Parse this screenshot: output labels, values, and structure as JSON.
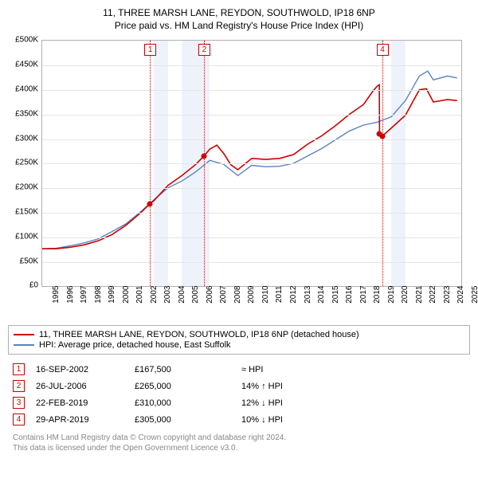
{
  "title": {
    "line1": "11, THREE MARSH LANE, REYDON, SOUTHWOLD, IP18 6NP",
    "line2": "Price paid vs. HM Land Registry's House Price Index (HPI)",
    "fontsize": 12,
    "color": "#000000"
  },
  "chart": {
    "type": "line",
    "background_color": "#ffffff",
    "border_color": "#b0b0b0",
    "grid_color": "#e5e5e5",
    "y_axis": {
      "min": 0,
      "max": 500000,
      "tick_step": 50000,
      "ticks": [
        "£0",
        "£50K",
        "£100K",
        "£150K",
        "£200K",
        "£250K",
        "£300K",
        "£350K",
        "£400K",
        "£450K",
        "£500K"
      ],
      "fontsize": 10
    },
    "x_axis": {
      "min": 1995,
      "max": 2025,
      "ticks": [
        "1995",
        "1996",
        "1997",
        "1998",
        "1999",
        "2000",
        "2001",
        "2002",
        "2003",
        "2004",
        "2005",
        "2006",
        "2007",
        "2008",
        "2009",
        "2010",
        "2011",
        "2012",
        "2013",
        "2014",
        "2015",
        "2016",
        "2017",
        "2018",
        "2019",
        "2020",
        "2021",
        "2022",
        "2023",
        "2024",
        "2025"
      ],
      "fontsize": 10
    },
    "shaded_bands": [
      {
        "year_start": 2003,
        "year_end": 2004,
        "color": "#eef3fb"
      },
      {
        "year_start": 2005,
        "year_end": 2007,
        "color": "#eef3fb"
      },
      {
        "year_start": 2020,
        "year_end": 2021,
        "color": "#eef3fb"
      }
    ],
    "marker_lines": [
      {
        "id": "1",
        "year": 2002.71,
        "label_top": -16,
        "color": "#cc0000"
      },
      {
        "id": "2",
        "year": 2006.57,
        "label_top": -16,
        "color": "#cc0000"
      },
      {
        "id": "4",
        "year": 2019.33,
        "label_top": -16,
        "color": "#cc0000"
      }
    ],
    "series": [
      {
        "name": "property",
        "label": "11, THREE MARSH LANE, REYDON, SOUTHWOLD, IP18 6NP (detached house)",
        "color": "#cc0000",
        "line_width": 1.6,
        "points": [
          [
            1995.0,
            76000
          ],
          [
            1996.0,
            76000
          ],
          [
            1997.0,
            79000
          ],
          [
            1998.0,
            84000
          ],
          [
            1999.0,
            92000
          ],
          [
            2000.0,
            105000
          ],
          [
            2001.0,
            124000
          ],
          [
            2002.0,
            148000
          ],
          [
            2002.71,
            167500
          ],
          [
            2003.0,
            174000
          ],
          [
            2004.0,
            205000
          ],
          [
            2005.0,
            225000
          ],
          [
            2006.0,
            248000
          ],
          [
            2006.57,
            265000
          ],
          [
            2007.0,
            279000
          ],
          [
            2007.5,
            287000
          ],
          [
            2008.0,
            270000
          ],
          [
            2008.5,
            247000
          ],
          [
            2009.0,
            237000
          ],
          [
            2010.0,
            260000
          ],
          [
            2011.0,
            258000
          ],
          [
            2012.0,
            260000
          ],
          [
            2013.0,
            268000
          ],
          [
            2014.0,
            289000
          ],
          [
            2015.0,
            306000
          ],
          [
            2016.0,
            327000
          ],
          [
            2017.0,
            350000
          ],
          [
            2018.0,
            370000
          ],
          [
            2018.7,
            398000
          ],
          [
            2019.0,
            408000
          ],
          [
            2019.13,
            410000
          ],
          [
            2019.15,
            310000
          ],
          [
            2019.33,
            305000
          ],
          [
            2020.0,
            322000
          ],
          [
            2021.0,
            348000
          ],
          [
            2022.0,
            400000
          ],
          [
            2022.5,
            402000
          ],
          [
            2023.0,
            375000
          ],
          [
            2024.0,
            380000
          ],
          [
            2024.7,
            378000
          ]
        ]
      },
      {
        "name": "hpi",
        "label": "HPI: Average price, detached house, East Suffolk",
        "color": "#5b84c4",
        "line_width": 1.4,
        "points": [
          [
            1995.0,
            76000
          ],
          [
            1996.0,
            77000
          ],
          [
            1997.0,
            82000
          ],
          [
            1998.0,
            88000
          ],
          [
            1999.0,
            96000
          ],
          [
            2000.0,
            111000
          ],
          [
            2001.0,
            127000
          ],
          [
            2002.0,
            150000
          ],
          [
            2003.0,
            176000
          ],
          [
            2004.0,
            200000
          ],
          [
            2005.0,
            214000
          ],
          [
            2006.0,
            233000
          ],
          [
            2007.0,
            256000
          ],
          [
            2008.0,
            248000
          ],
          [
            2009.0,
            225000
          ],
          [
            2010.0,
            246000
          ],
          [
            2011.0,
            243000
          ],
          [
            2012.0,
            244000
          ],
          [
            2013.0,
            250000
          ],
          [
            2014.0,
            265000
          ],
          [
            2015.0,
            280000
          ],
          [
            2016.0,
            298000
          ],
          [
            2017.0,
            316000
          ],
          [
            2018.0,
            328000
          ],
          [
            2019.0,
            334000
          ],
          [
            2020.0,
            345000
          ],
          [
            2021.0,
            378000
          ],
          [
            2022.0,
            428000
          ],
          [
            2022.6,
            438000
          ],
          [
            2023.0,
            420000
          ],
          [
            2024.0,
            428000
          ],
          [
            2024.7,
            424000
          ]
        ]
      }
    ],
    "sale_points": [
      {
        "year": 2002.71,
        "price": 167500,
        "color": "#cc0000"
      },
      {
        "year": 2006.57,
        "price": 265000,
        "color": "#cc0000"
      },
      {
        "year": 2019.15,
        "price": 310000,
        "color": "#cc0000"
      },
      {
        "year": 2019.33,
        "price": 305000,
        "color": "#cc0000"
      }
    ]
  },
  "legend": {
    "border_color": "#b0b0b0",
    "fontsize": 11,
    "rows": [
      {
        "color": "#cc0000",
        "label": "11, THREE MARSH LANE, REYDON, SOUTHWOLD, IP18 6NP (detached house)"
      },
      {
        "color": "#5b84c4",
        "label": "HPI: Average price, detached house, East Suffolk"
      }
    ]
  },
  "sales": [
    {
      "marker": "1",
      "date": "16-SEP-2002",
      "price": "£167,500",
      "hpi_rel": "≈ HPI"
    },
    {
      "marker": "2",
      "date": "26-JUL-2006",
      "price": "£265,000",
      "hpi_rel": "14% ↑ HPI"
    },
    {
      "marker": "3",
      "date": "22-FEB-2019",
      "price": "£310,000",
      "hpi_rel": "12% ↓ HPI"
    },
    {
      "marker": "4",
      "date": "29-APR-2019",
      "price": "£305,000",
      "hpi_rel": "10% ↓ HPI"
    }
  ],
  "footer": {
    "line1": "Contains HM Land Registry data © Crown copyright and database right 2024.",
    "line2": "This data is licensed under the Open Government Licence v3.0.",
    "fontsize": 10,
    "color": "#888888"
  }
}
